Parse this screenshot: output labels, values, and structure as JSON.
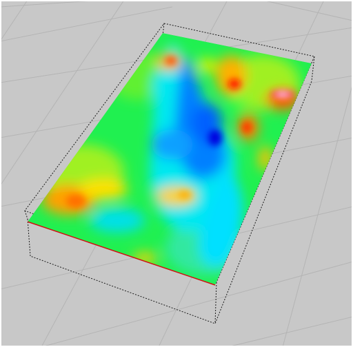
{
  "viewport": {
    "background_color": "#c8c8c8",
    "grid_color": "#b4b4b4",
    "bounding_box_color": "#1a1a1a",
    "border_color": "#ffffff"
  },
  "surface": {
    "edge_color": "#d01010",
    "colormap": [
      "#0000ff",
      "#00a0ff",
      "#00ffff",
      "#00ff40",
      "#a0ff00",
      "#ffff00",
      "#ff8000",
      "#ff0000",
      "#ff00ff"
    ]
  }
}
